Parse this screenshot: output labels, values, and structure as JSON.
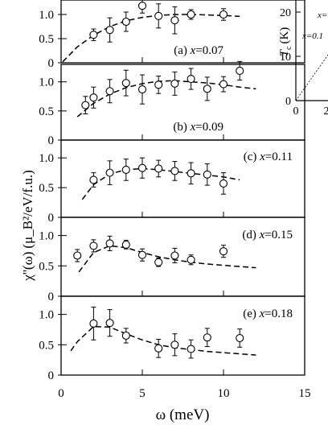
{
  "chart_data": {
    "type": "scatter",
    "xlabel": "ω (meV)",
    "ylabel_main": "χ''(ω)",
    "ylabel_units": "(μ_B²/eV/f.u.)",
    "xlim": [
      0,
      15
    ],
    "xticks": [
      "0",
      "5",
      "10",
      "15"
    ],
    "ylim": [
      0,
      1.3
    ],
    "yticks": [
      "0",
      "0.5",
      "1.0"
    ],
    "fit_line_style": "dashed",
    "marker": "open-circle-with-error-bars",
    "panels": [
      {
        "label_prefix": "(a)",
        "label_x": "x",
        "label_value": "=0.07",
        "points": [
          {
            "x": 2,
            "y": 0.58,
            "err": 0.12
          },
          {
            "x": 3,
            "y": 0.68,
            "err": 0.25
          },
          {
            "x": 4,
            "y": 0.85,
            "err": 0.2
          },
          {
            "x": 5,
            "y": 1.18,
            "err": 0.15
          },
          {
            "x": 6,
            "y": 0.97,
            "err": 0.25
          },
          {
            "x": 7,
            "y": 0.88,
            "err": 0.28
          },
          {
            "x": 8,
            "y": 1.0,
            "err": 0.1
          },
          {
            "x": 10,
            "y": 1.0,
            "err": 0.12
          }
        ],
        "fit": [
          [
            0.1,
            0.02
          ],
          [
            1,
            0.33
          ],
          [
            2,
            0.57
          ],
          [
            3,
            0.75
          ],
          [
            4,
            0.87
          ],
          [
            5,
            0.94
          ],
          [
            6,
            0.98
          ],
          [
            7,
            1.0
          ],
          [
            8,
            1.0
          ],
          [
            9,
            0.99
          ],
          [
            10,
            0.98
          ],
          [
            11,
            0.96
          ]
        ]
      },
      {
        "label_prefix": "(b)",
        "label_x": "x",
        "label_value": "=0.09",
        "points": [
          {
            "x": 1.5,
            "y": 0.6,
            "err": 0.15
          },
          {
            "x": 2,
            "y": 0.73,
            "err": 0.18
          },
          {
            "x": 3,
            "y": 0.84,
            "err": 0.2
          },
          {
            "x": 4,
            "y": 0.98,
            "err": 0.22
          },
          {
            "x": 5,
            "y": 0.87,
            "err": 0.25
          },
          {
            "x": 6,
            "y": 0.95,
            "err": 0.15
          },
          {
            "x": 7,
            "y": 0.97,
            "err": 0.2
          },
          {
            "x": 8,
            "y": 1.05,
            "err": 0.18
          },
          {
            "x": 9,
            "y": 0.88,
            "err": 0.2
          },
          {
            "x": 10,
            "y": 0.96,
            "err": 0.13
          },
          {
            "x": 11,
            "y": 1.19,
            "err": 0.16
          }
        ],
        "fit": [
          [
            1,
            0.4
          ],
          [
            2,
            0.63
          ],
          [
            3,
            0.79
          ],
          [
            4,
            0.9
          ],
          [
            5,
            0.97
          ],
          [
            6,
            1.01
          ],
          [
            7,
            1.02
          ],
          [
            8,
            1.0
          ],
          [
            9,
            0.98
          ],
          [
            10,
            0.95
          ],
          [
            11,
            0.91
          ],
          [
            12,
            0.88
          ]
        ]
      },
      {
        "label_prefix": "(c)",
        "label_x": "x",
        "label_value": "=0.11",
        "points": [
          {
            "x": 2,
            "y": 0.63,
            "err": 0.12
          },
          {
            "x": 3,
            "y": 0.75,
            "err": 0.2
          },
          {
            "x": 4,
            "y": 0.8,
            "err": 0.18
          },
          {
            "x": 5,
            "y": 0.83,
            "err": 0.17
          },
          {
            "x": 6,
            "y": 0.82,
            "err": 0.14
          },
          {
            "x": 7,
            "y": 0.78,
            "err": 0.16
          },
          {
            "x": 8,
            "y": 0.74,
            "err": 0.18
          },
          {
            "x": 9,
            "y": 0.72,
            "err": 0.18
          },
          {
            "x": 10,
            "y": 0.57,
            "err": 0.18
          }
        ],
        "fit": [
          [
            1.3,
            0.3
          ],
          [
            2,
            0.55
          ],
          [
            3,
            0.73
          ],
          [
            4,
            0.8
          ],
          [
            5,
            0.82
          ],
          [
            6,
            0.8
          ],
          [
            7,
            0.77
          ],
          [
            8,
            0.74
          ],
          [
            9,
            0.71
          ],
          [
            10,
            0.68
          ],
          [
            11,
            0.63
          ]
        ]
      },
      {
        "label_prefix": "(d)",
        "label_x": "x",
        "label_value": "=0.15",
        "points": [
          {
            "x": 1,
            "y": 0.67,
            "err": 0.1
          },
          {
            "x": 2,
            "y": 0.83,
            "err": 0.1
          },
          {
            "x": 3,
            "y": 0.87,
            "err": 0.12
          },
          {
            "x": 4,
            "y": 0.85,
            "err": 0.07
          },
          {
            "x": 5,
            "y": 0.68,
            "err": 0.1
          },
          {
            "x": 6,
            "y": 0.56,
            "err": 0.07
          },
          {
            "x": 7,
            "y": 0.67,
            "err": 0.12
          },
          {
            "x": 8,
            "y": 0.6,
            "err": 0.08
          },
          {
            "x": 10,
            "y": 0.74,
            "err": 0.1
          }
        ],
        "fit": [
          [
            1.1,
            0.4
          ],
          [
            2,
            0.72
          ],
          [
            3,
            0.83
          ],
          [
            4,
            0.8
          ],
          [
            5,
            0.72
          ],
          [
            6,
            0.65
          ],
          [
            7,
            0.6
          ],
          [
            8,
            0.56
          ],
          [
            9,
            0.53
          ],
          [
            10,
            0.51
          ],
          [
            11,
            0.49
          ],
          [
            12,
            0.47
          ]
        ]
      },
      {
        "label_prefix": "(e)",
        "label_x": "x",
        "label_value": "=0.18",
        "points": [
          {
            "x": 2,
            "y": 0.85,
            "err": 0.27
          },
          {
            "x": 3,
            "y": 0.86,
            "err": 0.22
          },
          {
            "x": 4,
            "y": 0.65,
            "err": 0.12
          },
          {
            "x": 6,
            "y": 0.44,
            "err": 0.15
          },
          {
            "x": 7,
            "y": 0.5,
            "err": 0.18
          },
          {
            "x": 8,
            "y": 0.43,
            "err": 0.15
          },
          {
            "x": 9,
            "y": 0.62,
            "err": 0.15
          },
          {
            "x": 11,
            "y": 0.61,
            "err": 0.15
          }
        ],
        "fit": [
          [
            0.6,
            0.4
          ],
          [
            1,
            0.55
          ],
          [
            2,
            0.8
          ],
          [
            3,
            0.79
          ],
          [
            4,
            0.68
          ],
          [
            5,
            0.58
          ],
          [
            6,
            0.5
          ],
          [
            7,
            0.45
          ],
          [
            8,
            0.42
          ],
          [
            9,
            0.39
          ],
          [
            10,
            0.37
          ],
          [
            11,
            0.35
          ],
          [
            12,
            0.33
          ]
        ]
      }
    ],
    "inset": {
      "ylabel_main": "T",
      "ylabel_sub": "c",
      "ylabel_unit": "(K)",
      "yticks": [
        "0",
        "10",
        "20"
      ],
      "xticks": [
        "0",
        "2"
      ],
      "partial_label": "x=0.1",
      "partial_label_right": "x="
    }
  }
}
